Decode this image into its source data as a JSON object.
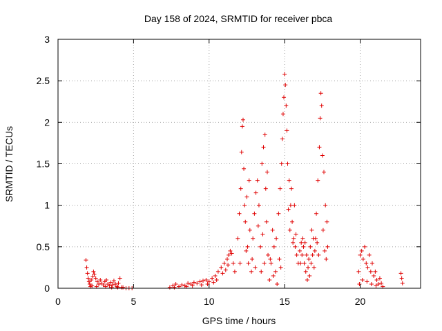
{
  "chart_data": {
    "type": "scatter",
    "title": "Day 158 of 2024, SRMTID for receiver pbca",
    "xlabel": "GPS time / hours",
    "ylabel": "SRMTID / TECUs",
    "xlim": [
      0,
      24
    ],
    "ylim": [
      0,
      3
    ],
    "xticks": [
      0,
      5,
      10,
      15,
      20
    ],
    "yticks": [
      0,
      0.5,
      1,
      1.5,
      2,
      2.5,
      3
    ],
    "xtick_labels": [
      "0",
      "5",
      "10",
      "15",
      "20"
    ],
    "ytick_labels": [
      "0",
      "0.5",
      "1",
      "1.5",
      "2",
      "2.5",
      "3"
    ],
    "grid": true,
    "marker": "+",
    "series": [
      {
        "name": "SRMTID",
        "color": "#e00000",
        "points": [
          [
            1.85,
            0.34
          ],
          [
            1.9,
            0.25
          ],
          [
            1.95,
            0.18
          ],
          [
            2.0,
            0.12
          ],
          [
            2.05,
            0.08
          ],
          [
            2.1,
            0.05
          ],
          [
            2.15,
            0.02
          ],
          [
            2.2,
            0.1
          ],
          [
            2.3,
            0.14
          ],
          [
            2.35,
            0.2
          ],
          [
            2.4,
            0.17
          ],
          [
            2.5,
            0.12
          ],
          [
            2.6,
            0.08
          ],
          [
            2.7,
            0.05
          ],
          [
            2.8,
            0.1
          ],
          [
            2.9,
            0.06
          ],
          [
            3.0,
            0.04
          ],
          [
            3.1,
            0.08
          ],
          [
            3.2,
            0.1
          ],
          [
            3.3,
            0.05
          ],
          [
            3.4,
            0.03
          ],
          [
            3.5,
            0.07
          ],
          [
            3.6,
            0.04
          ],
          [
            3.7,
            0.09
          ],
          [
            3.8,
            0.05
          ],
          [
            3.9,
            0.02
          ],
          [
            4.0,
            0.06
          ],
          [
            4.1,
            0.12
          ],
          [
            4.2,
            0.01
          ],
          [
            4.3,
            0.01
          ],
          [
            4.5,
            0.0
          ],
          [
            4.7,
            0.0
          ],
          [
            4.9,
            0.0
          ],
          [
            2.25,
            0.03
          ],
          [
            2.55,
            0.02
          ],
          [
            3.15,
            0.02
          ],
          [
            3.55,
            0.01
          ],
          [
            3.95,
            0.01
          ],
          [
            7.4,
            0.01
          ],
          [
            7.6,
            0.03
          ],
          [
            7.8,
            0.05
          ],
          [
            8.0,
            0.02
          ],
          [
            8.2,
            0.04
          ],
          [
            8.4,
            0.03
          ],
          [
            8.6,
            0.06
          ],
          [
            8.8,
            0.05
          ],
          [
            9.0,
            0.07
          ],
          [
            9.2,
            0.06
          ],
          [
            9.4,
            0.08
          ],
          [
            9.6,
            0.09
          ],
          [
            9.8,
            0.1
          ],
          [
            10.0,
            0.08
          ],
          [
            10.2,
            0.12
          ],
          [
            10.4,
            0.15
          ],
          [
            10.6,
            0.2
          ],
          [
            10.8,
            0.25
          ],
          [
            11.0,
            0.3
          ],
          [
            11.2,
            0.35
          ],
          [
            11.3,
            0.4
          ],
          [
            11.4,
            0.45
          ],
          [
            11.5,
            0.42
          ],
          [
            11.6,
            0.3
          ],
          [
            11.7,
            0.2
          ],
          [
            10.5,
            0.1
          ],
          [
            10.9,
            0.18
          ],
          [
            11.1,
            0.22
          ],
          [
            9.5,
            0.04
          ],
          [
            8.5,
            0.02
          ],
          [
            7.7,
            0.01
          ],
          [
            8.9,
            0.03
          ],
          [
            9.9,
            0.05
          ],
          [
            10.3,
            0.07
          ],
          [
            11.25,
            0.28
          ],
          [
            11.9,
            0.6
          ],
          [
            12.0,
            0.9
          ],
          [
            12.1,
            1.2
          ],
          [
            12.15,
            1.64
          ],
          [
            12.2,
            1.95
          ],
          [
            12.25,
            2.03
          ],
          [
            12.3,
            1.44
          ],
          [
            12.35,
            1.0
          ],
          [
            12.4,
            0.8
          ],
          [
            12.5,
            1.1
          ],
          [
            12.55,
            0.5
          ],
          [
            12.6,
            0.3
          ],
          [
            12.7,
            0.7
          ],
          [
            12.8,
            0.2
          ],
          [
            12.9,
            0.6
          ],
          [
            13.0,
            0.9
          ],
          [
            13.1,
            1.15
          ],
          [
            13.2,
            1.3
          ],
          [
            13.3,
            1.0
          ],
          [
            13.4,
            0.5
          ],
          [
            13.45,
            0.2
          ],
          [
            13.5,
            1.5
          ],
          [
            13.6,
            1.7
          ],
          [
            13.7,
            1.85
          ],
          [
            13.75,
            1.2
          ],
          [
            13.8,
            0.8
          ],
          [
            13.9,
            0.4
          ],
          [
            14.0,
            0.1
          ],
          [
            14.1,
            0.3
          ],
          [
            14.2,
            0.7
          ],
          [
            14.3,
            0.5
          ],
          [
            14.4,
            0.2
          ],
          [
            14.5,
            0.05
          ],
          [
            14.6,
            0.9
          ],
          [
            14.7,
            1.2
          ],
          [
            14.8,
            1.5
          ],
          [
            14.85,
            1.8
          ],
          [
            14.9,
            2.1
          ],
          [
            14.95,
            2.3
          ],
          [
            15.0,
            2.58
          ],
          [
            15.05,
            2.45
          ],
          [
            15.1,
            2.2
          ],
          [
            15.15,
            1.9
          ],
          [
            15.2,
            1.5
          ],
          [
            15.3,
            1.3
          ],
          [
            15.4,
            1.0
          ],
          [
            15.5,
            0.8
          ],
          [
            15.6,
            0.6
          ],
          [
            15.7,
            0.5
          ],
          [
            15.8,
            0.4
          ],
          [
            15.9,
            0.3
          ],
          [
            16.0,
            0.45
          ],
          [
            16.1,
            0.55
          ],
          [
            16.2,
            0.6
          ],
          [
            16.3,
            0.3
          ],
          [
            16.4,
            0.2
          ],
          [
            16.5,
            0.1
          ],
          [
            16.6,
            0.35
          ],
          [
            16.7,
            0.5
          ],
          [
            16.8,
            0.7
          ],
          [
            16.9,
            0.6
          ],
          [
            17.0,
            0.45
          ],
          [
            17.1,
            0.9
          ],
          [
            17.2,
            1.3
          ],
          [
            17.3,
            1.7
          ],
          [
            17.35,
            2.05
          ],
          [
            17.4,
            2.35
          ],
          [
            17.45,
            2.2
          ],
          [
            17.5,
            1.6
          ],
          [
            17.6,
            1.4
          ],
          [
            17.7,
            1.0
          ],
          [
            17.8,
            0.8
          ],
          [
            17.85,
            0.5
          ],
          [
            12.05,
            0.3
          ],
          [
            12.45,
            0.45
          ],
          [
            12.65,
            1.3
          ],
          [
            12.85,
            0.35
          ],
          [
            13.05,
            0.25
          ],
          [
            13.25,
            0.75
          ],
          [
            13.55,
            0.65
          ],
          [
            13.65,
            0.3
          ],
          [
            13.85,
            1.4
          ],
          [
            14.05,
            0.35
          ],
          [
            14.25,
            0.15
          ],
          [
            14.45,
            0.6
          ],
          [
            14.65,
            0.35
          ],
          [
            14.75,
            0.25
          ],
          [
            15.25,
            0.95
          ],
          [
            15.35,
            0.7
          ],
          [
            15.45,
            1.2
          ],
          [
            15.55,
            0.55
          ],
          [
            15.65,
            1.0
          ],
          [
            15.75,
            0.65
          ],
          [
            16.05,
            0.3
          ],
          [
            16.15,
            0.4
          ],
          [
            16.25,
            0.5
          ],
          [
            16.35,
            0.55
          ],
          [
            16.45,
            0.4
          ],
          [
            16.55,
            0.25
          ],
          [
            16.65,
            0.15
          ],
          [
            16.75,
            0.3
          ],
          [
            16.85,
            0.4
          ],
          [
            16.95,
            0.25
          ],
          [
            17.05,
            0.6
          ],
          [
            17.15,
            0.55
          ],
          [
            17.25,
            0.4
          ],
          [
            17.55,
            0.7
          ],
          [
            17.65,
            0.45
          ],
          [
            17.75,
            0.35
          ],
          [
            19.9,
            0.2
          ],
          [
            20.0,
            0.4
          ],
          [
            20.1,
            0.45
          ],
          [
            20.2,
            0.35
          ],
          [
            20.3,
            0.5
          ],
          [
            20.4,
            0.3
          ],
          [
            20.5,
            0.25
          ],
          [
            20.6,
            0.4
          ],
          [
            20.7,
            0.2
          ],
          [
            20.8,
            0.3
          ],
          [
            20.9,
            0.15
          ],
          [
            21.0,
            0.2
          ],
          [
            21.1,
            0.1
          ],
          [
            21.2,
            0.05
          ],
          [
            21.3,
            0.12
          ],
          [
            21.4,
            0.06
          ],
          [
            21.5,
            0.02
          ],
          [
            19.95,
            0.05
          ],
          [
            20.15,
            0.1
          ],
          [
            20.45,
            0.08
          ],
          [
            20.75,
            0.05
          ],
          [
            21.05,
            0.03
          ],
          [
            22.7,
            0.18
          ],
          [
            22.75,
            0.12
          ],
          [
            22.8,
            0.06
          ]
        ]
      }
    ]
  }
}
